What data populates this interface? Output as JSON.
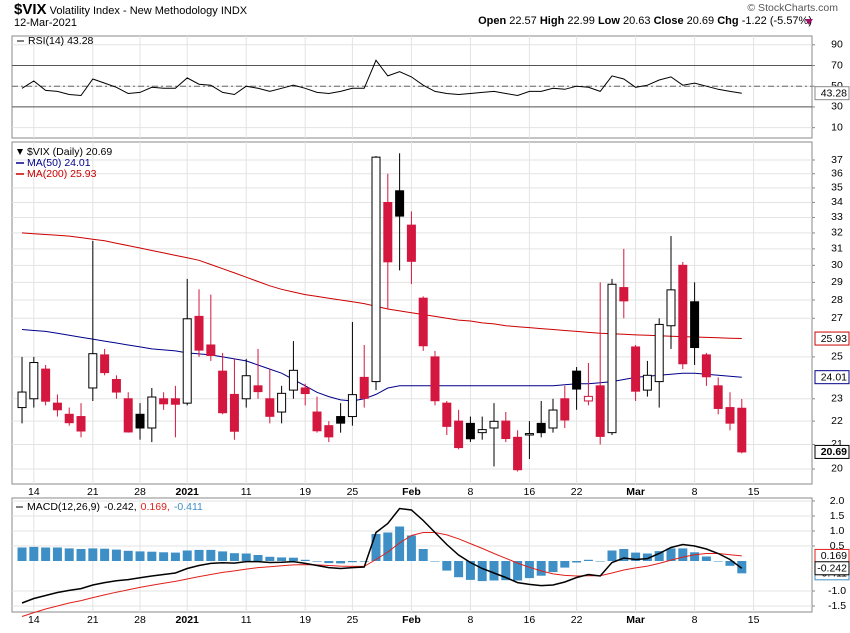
{
  "header": {
    "symbol": "$VIX",
    "name": "Volatility Index - New Methodology",
    "exchange": "INDX",
    "date": "12-Mar-2021",
    "copyright": "© StockCharts.com",
    "quote": [
      {
        "label": "Open",
        "value": "22.57"
      },
      {
        "label": "High",
        "value": "22.99"
      },
      {
        "label": "Low",
        "value": "20.63"
      },
      {
        "label": "Close",
        "value": "20.69"
      },
      {
        "label": "Chg",
        "value": "-1.22 (-5.57%)"
      }
    ]
  },
  "chart_data": [
    {
      "type": "line",
      "title": "RSI(14) 43.28",
      "xlim": [
        -0.85,
        66.95
      ],
      "ylim": [
        0,
        98.5
      ],
      "yticks": [
        10,
        30,
        50,
        70,
        90
      ],
      "grid": true,
      "reference_lines": [
        30,
        70
      ],
      "midline": 50,
      "series": [
        {
          "name": "RSI(14)",
          "color": "#000000",
          "last_label": "43.28",
          "values": [
            48,
            55,
            46,
            45,
            42,
            41,
            57,
            53,
            49,
            43,
            44,
            49,
            48,
            48,
            58,
            52,
            51,
            44,
            42,
            50,
            48,
            45,
            48,
            51,
            48,
            44,
            43,
            45,
            48,
            48,
            75,
            60,
            64,
            59,
            51,
            45,
            43,
            42,
            43,
            44,
            45,
            43,
            41,
            45,
            45,
            48,
            47,
            50,
            49,
            45,
            60,
            57,
            49,
            51,
            56,
            59,
            51,
            53,
            50,
            47,
            45,
            43.28
          ]
        }
      ]
    },
    {
      "type": "candlestick",
      "log": true,
      "xlim": [
        -0.85,
        66.95
      ],
      "ylim": [
        19.41,
        38.35
      ],
      "grid": true,
      "yticks": [
        20,
        21,
        22,
        23,
        25,
        27,
        28,
        29,
        30,
        31,
        32,
        33,
        34,
        35,
        36,
        37
      ],
      "xticks": [
        {
          "value": 1,
          "label": "14"
        },
        {
          "value": 6,
          "label": "21"
        },
        {
          "value": 10,
          "label": "28"
        },
        {
          "value": 14,
          "label": "2021",
          "major": true
        },
        {
          "value": 19,
          "label": "11"
        },
        {
          "value": 24,
          "label": "19"
        },
        {
          "value": 28,
          "label": "25"
        },
        {
          "value": 33,
          "label": "Feb",
          "major": true
        },
        {
          "value": 38,
          "label": "8"
        },
        {
          "value": 43,
          "label": "16"
        },
        {
          "value": 47,
          "label": "22"
        },
        {
          "value": 52,
          "label": "Mar",
          "major": true
        },
        {
          "value": 57,
          "label": "8"
        },
        {
          "value": 62,
          "label": "15"
        }
      ],
      "series": [
        {
          "name": "$VIX (Daily) 20.69",
          "last_label": "20.69",
          "color_up": "#000000",
          "color_down": "#d4173f",
          "open": [
            22.6,
            23.0,
            24.4,
            22.8,
            22.3,
            22.2,
            23.5,
            25.1,
            23.9,
            23.0,
            22.3,
            21.7,
            23.0,
            23.0,
            22.8,
            27.1,
            25.6,
            24.3,
            23.2,
            23.0,
            23.6,
            23.0,
            22.4,
            23.4,
            23.5,
            22.4,
            21.8,
            22.2,
            22.2,
            24.0,
            23.8,
            34.0,
            34.8,
            32.5,
            28.1,
            25.0,
            22.8,
            22.0,
            21.9,
            21.5,
            21.7,
            22.0,
            21.3,
            21.4,
            21.9,
            21.7,
            23.0,
            24.3,
            22.9,
            23.6,
            21.5,
            28.7,
            25.5,
            23.4,
            23.8,
            26.6,
            30.0,
            27.9,
            25.1,
            23.6,
            22.6,
            22.57
          ],
          "high": [
            25.0,
            25.0,
            24.6,
            23.2,
            22.6,
            22.8,
            31.5,
            25.4,
            24.1,
            23.3,
            22.8,
            23.5,
            23.3,
            23.6,
            29.2,
            28.6,
            28.3,
            25.2,
            24.9,
            24.9,
            25.4,
            24.4,
            23.6,
            25.8,
            23.7,
            23.1,
            22.0,
            22.8,
            26.8,
            25.6,
            37.3,
            36.0,
            37.5,
            33.4,
            28.2,
            25.3,
            22.9,
            22.5,
            22.2,
            22.2,
            22.8,
            22.4,
            21.6,
            22.0,
            22.9,
            23.0,
            23.6,
            24.5,
            24.7,
            29.0,
            29.2,
            31.0,
            25.6,
            24.8,
            27.0,
            31.8,
            30.2,
            29.0,
            25.2,
            24.0,
            23.3,
            22.99
          ],
          "low": [
            21.9,
            22.6,
            22.7,
            22.2,
            21.8,
            21.3,
            22.9,
            24.1,
            23.0,
            21.5,
            21.2,
            21.1,
            22.5,
            21.3,
            22.7,
            25.0,
            24.8,
            22.3,
            21.2,
            22.6,
            23.0,
            21.9,
            21.9,
            23.0,
            22.7,
            21.5,
            21.1,
            21.5,
            21.8,
            22.6,
            23.4,
            27.5,
            29.7,
            28.9,
            25.3,
            22.7,
            21.4,
            20.8,
            21.1,
            21.2,
            20.1,
            21.1,
            19.9,
            20.4,
            21.3,
            21.5,
            21.7,
            22.5,
            22.7,
            21.0,
            21.4,
            27.0,
            22.9,
            23.1,
            22.6,
            25.4,
            24.4,
            24.6,
            23.6,
            22.3,
            21.6,
            20.63
          ],
          "close": [
            23.31,
            24.72,
            22.89,
            22.5,
            21.93,
            21.57,
            25.16,
            24.23,
            23.31,
            21.53,
            21.7,
            23.08,
            22.77,
            22.75,
            26.97,
            25.34,
            25.07,
            22.37,
            21.56,
            24.08,
            23.33,
            22.21,
            23.25,
            24.34,
            23.24,
            21.58,
            21.32,
            21.91,
            23.19,
            23.02,
            37.21,
            30.21,
            33.09,
            30.24,
            25.56,
            22.91,
            21.77,
            20.87,
            21.24,
            21.63,
            21.99,
            21.25,
            19.97,
            21.46,
            21.5,
            22.49,
            22.05,
            23.45,
            23.11,
            21.34,
            28.89,
            27.95,
            23.35,
            24.1,
            26.67,
            28.57,
            24.66,
            25.47,
            24.03,
            22.56,
            21.91,
            20.69
          ]
        },
        {
          "name": "MA(50) 24.01",
          "last_label": "24.01",
          "color": "#00008b",
          "values": [
            26.4,
            26.35,
            26.3,
            26.2,
            26.1,
            26.0,
            25.9,
            25.8,
            25.7,
            25.6,
            25.5,
            25.4,
            25.35,
            25.3,
            25.2,
            25.15,
            25.1,
            25.0,
            24.9,
            24.8,
            24.6,
            24.4,
            24.2,
            23.9,
            23.6,
            23.3,
            23.1,
            22.95,
            22.9,
            23.0,
            23.2,
            23.5,
            23.6,
            23.6,
            23.6,
            23.6,
            23.6,
            23.6,
            23.6,
            23.6,
            23.6,
            23.6,
            23.6,
            23.6,
            23.6,
            23.6,
            23.65,
            23.7,
            23.7,
            23.75,
            23.8,
            23.9,
            24.0,
            24.05,
            24.1,
            24.15,
            24.2,
            24.2,
            24.15,
            24.1,
            24.05,
            24.01
          ]
        },
        {
          "name": "MA(200) 25.93",
          "last_label": "25.93",
          "color": "#cc0000",
          "values": [
            32.0,
            31.95,
            31.9,
            31.85,
            31.8,
            31.7,
            31.6,
            31.5,
            31.35,
            31.2,
            31.05,
            30.9,
            30.75,
            30.6,
            30.45,
            30.3,
            30.05,
            29.8,
            29.55,
            29.3,
            29.05,
            28.8,
            28.6,
            28.45,
            28.3,
            28.2,
            28.1,
            28.0,
            27.9,
            27.8,
            27.65,
            27.5,
            27.4,
            27.3,
            27.2,
            27.1,
            27.0,
            26.9,
            26.85,
            26.75,
            26.7,
            26.6,
            26.55,
            26.5,
            26.45,
            26.4,
            26.35,
            26.3,
            26.25,
            26.2,
            26.18,
            26.15,
            26.12,
            26.1,
            26.08,
            26.05,
            26.03,
            26.01,
            25.99,
            25.97,
            25.95,
            25.93
          ]
        }
      ]
    },
    {
      "type": "macd",
      "title": "MACD(12,26,9)",
      "xlim": [
        -0.85,
        66.95
      ],
      "ylim": [
        -1.7,
        2.1
      ],
      "grid": true,
      "yticks": [
        {
          "value": 2,
          "label": "2.0"
        },
        {
          "value": 1.5,
          "label": "1.5"
        },
        {
          "value": 1,
          "label": "1.0"
        },
        {
          "value": 0.5,
          "label": "0.5"
        },
        {
          "value": -1,
          "label": "-1.0"
        },
        {
          "value": -1.5,
          "label": "-1.5"
        }
      ],
      "xticks": [
        {
          "value": 1,
          "label": "14"
        },
        {
          "value": 6,
          "label": "21"
        },
        {
          "value": 10,
          "label": "28"
        },
        {
          "value": 14,
          "label": "2021",
          "major": true
        },
        {
          "value": 19,
          "label": "11"
        },
        {
          "value": 24,
          "label": "19"
        },
        {
          "value": 28,
          "label": "25"
        },
        {
          "value": 33,
          "label": "Feb",
          "major": true
        },
        {
          "value": 38,
          "label": "8"
        },
        {
          "value": 43,
          "label": "16"
        },
        {
          "value": 47,
          "label": "22"
        },
        {
          "value": 52,
          "label": "Mar",
          "major": true
        },
        {
          "value": 57,
          "label": "8"
        },
        {
          "value": 62,
          "label": "15"
        }
      ],
      "series": [
        {
          "legend_label": "-0.242,",
          "last_label": "-0.242",
          "color": "#000000",
          "values": [
            -1.4,
            -1.25,
            -1.15,
            -1.05,
            -0.98,
            -0.92,
            -0.8,
            -0.72,
            -0.66,
            -0.62,
            -0.56,
            -0.5,
            -0.45,
            -0.4,
            -0.25,
            -0.15,
            -0.08,
            -0.06,
            -0.07,
            -0.02,
            -0.02,
            -0.05,
            -0.04,
            -0.02,
            -0.08,
            -0.15,
            -0.22,
            -0.25,
            -0.22,
            -0.2,
            0.95,
            1.25,
            1.75,
            1.7,
            1.35,
            0.95,
            0.55,
            0.2,
            -0.05,
            -0.25,
            -0.4,
            -0.55,
            -0.72,
            -0.78,
            -0.82,
            -0.8,
            -0.7,
            -0.55,
            -0.45,
            -0.5,
            -0.05,
            0.1,
            0.05,
            0.08,
            0.25,
            0.45,
            0.55,
            0.5,
            0.4,
            0.25,
            0.05,
            -0.242
          ]
        },
        {
          "legend_label": "0.169,",
          "last_label": "0.169",
          "color": "#e0201b",
          "values": [
            -1.85,
            -1.72,
            -1.6,
            -1.5,
            -1.4,
            -1.32,
            -1.22,
            -1.13,
            -1.04,
            -0.96,
            -0.88,
            -0.81,
            -0.74,
            -0.68,
            -0.6,
            -0.52,
            -0.45,
            -0.38,
            -0.33,
            -0.27,
            -0.22,
            -0.19,
            -0.16,
            -0.13,
            -0.12,
            -0.13,
            -0.15,
            -0.17,
            -0.18,
            -0.18,
            0.05,
            0.3,
            0.6,
            0.85,
            0.95,
            0.95,
            0.87,
            0.74,
            0.58,
            0.42,
            0.25,
            0.09,
            -0.07,
            -0.21,
            -0.33,
            -0.43,
            -0.48,
            -0.5,
            -0.49,
            -0.49,
            -0.4,
            -0.3,
            -0.23,
            -0.17,
            -0.08,
            0.03,
            0.13,
            0.21,
            0.25,
            0.25,
            0.21,
            0.169
          ]
        },
        {
          "legend_label": "-0.411",
          "last_label": "-0.411",
          "color": "#3d8fc6",
          "values": [
            0.45,
            0.47,
            0.45,
            0.45,
            0.42,
            0.4,
            0.42,
            0.41,
            0.38,
            0.34,
            0.32,
            0.31,
            0.29,
            0.28,
            0.35,
            0.37,
            0.37,
            0.32,
            0.26,
            0.25,
            0.2,
            0.14,
            0.12,
            0.11,
            0.04,
            -0.02,
            -0.07,
            -0.08,
            -0.04,
            -0.02,
            0.9,
            0.95,
            1.15,
            0.85,
            0.4,
            0.0,
            -0.32,
            -0.54,
            -0.63,
            -0.67,
            -0.65,
            -0.64,
            -0.65,
            -0.57,
            -0.49,
            -0.37,
            -0.22,
            -0.05,
            0.04,
            -0.01,
            0.35,
            0.4,
            0.28,
            0.25,
            0.33,
            0.42,
            0.42,
            0.29,
            0.15,
            0.0,
            -0.16,
            -0.411
          ]
        }
      ]
    }
  ]
}
